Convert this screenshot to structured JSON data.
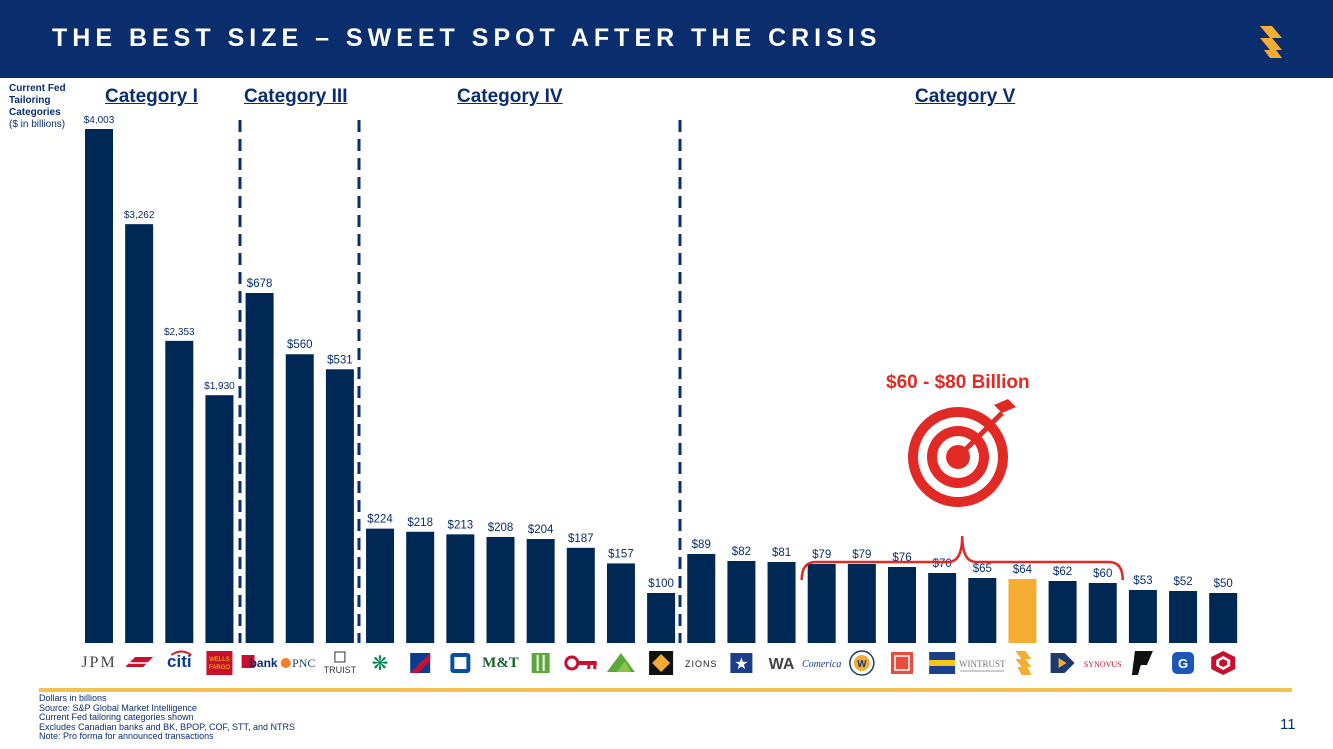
{
  "header": {
    "title": "THE BEST SIZE – SWEET SPOT AFTER THE CRISIS",
    "brand_color": "#0a2d6e"
  },
  "fed_label": {
    "line1": "Current Fed",
    "line2": "Tailoring",
    "line3": "Categories",
    "line4": "($ in billions)"
  },
  "categories_headers": [
    "Category I",
    "Category III",
    "Category IV",
    "Category V"
  ],
  "chart_data": {
    "type": "bar",
    "title": "Current Fed Tailoring Categories ($ in billions)",
    "categories": [
      "JPM",
      "BofA",
      "citi",
      "WELLS FARGO",
      "usbank",
      "PNC",
      "TRUIST",
      "Citizens",
      "Capital One",
      "Fifth Third",
      "M&T",
      "Huntington",
      "KeyBank",
      "Regions",
      "First Horizon",
      "ZIONS",
      "BOK",
      "Western Alliance",
      "Comerica",
      "Webster",
      "East West",
      "First Citizens",
      "WINTRUST",
      "Synovus-Pinnacle",
      "Valley",
      "SYNOVUS",
      "Popular",
      "Cullen Frost",
      "Commerce"
    ],
    "values": [
      4003,
      3262,
      2353,
      1930,
      678,
      560,
      531,
      224,
      218,
      213,
      208,
      204,
      187,
      157,
      100,
      89,
      82,
      81,
      79,
      79,
      76,
      70,
      65,
      64,
      62,
      60,
      53,
      52,
      50
    ],
    "value_labels": [
      "$4,003",
      "$3,262",
      "$2,353",
      "$1,930",
      "$678",
      "$560",
      "$531",
      "$224",
      "$218",
      "$213",
      "$208",
      "$204",
      "$187",
      "$157",
      "$100",
      "$89",
      "$82",
      "$81",
      "$79",
      "$79",
      "$76",
      "$70",
      "$65",
      "$64",
      "$62",
      "$60",
      "$53",
      "$52",
      "$50"
    ],
    "highlight_index": 23,
    "bar_color": "#002855",
    "highlight_color": "#f5ac32",
    "axis_break_after": 3,
    "groups": [
      {
        "name": "Category I",
        "start": 0,
        "end": 3
      },
      {
        "name": "Category III",
        "start": 4,
        "end": 6
      },
      {
        "name": "Category IV",
        "start": 7,
        "end": 14
      },
      {
        "name": "Category V",
        "start": 15,
        "end": 28
      }
    ],
    "bracket": {
      "start": 18,
      "end": 25,
      "label": "$60 - $80 Billion"
    },
    "xlabel": "",
    "ylabel": "$ in billions"
  },
  "accent_red": "#e12a26",
  "gold": "#f2c14e",
  "footnotes": [
    "Dollars in billions",
    "Source: S&P Global Market Intelligence",
    "Current Fed tailoring categories shown",
    "Excludes Canadian banks and BK, BPOP, COF, STT, and NTRS",
    "Note: Pro forma for announced transactions"
  ],
  "page_number": "11"
}
